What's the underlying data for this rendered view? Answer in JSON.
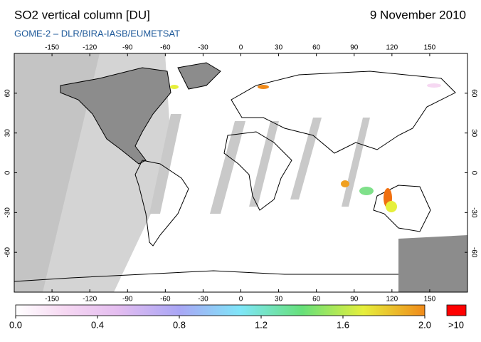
{
  "header": {
    "title": "SO2 vertical column [DU]",
    "date": "9 November 2010",
    "subtitle": "GOME-2  –  DLR/BIRA-IASB/EUMETSAT"
  },
  "map": {
    "lon_ticks": [
      -150,
      -120,
      -90,
      -60,
      -30,
      0,
      30,
      60,
      90,
      120,
      150
    ],
    "lat_ticks": [
      60,
      30,
      0,
      -30,
      -60
    ]
  },
  "colorbar": {
    "ticks": [
      {
        "value": 0,
        "label": "0.0"
      },
      {
        "value": 0.4,
        "label": "0.4"
      },
      {
        "value": 0.8,
        "label": "0.8"
      },
      {
        "value": 1.2,
        "label": "1.2"
      },
      {
        "value": 1.6,
        "label": "1.6"
      },
      {
        "value": 2.0,
        "label": "2.0"
      }
    ],
    "overflow_label": ">10"
  }
}
